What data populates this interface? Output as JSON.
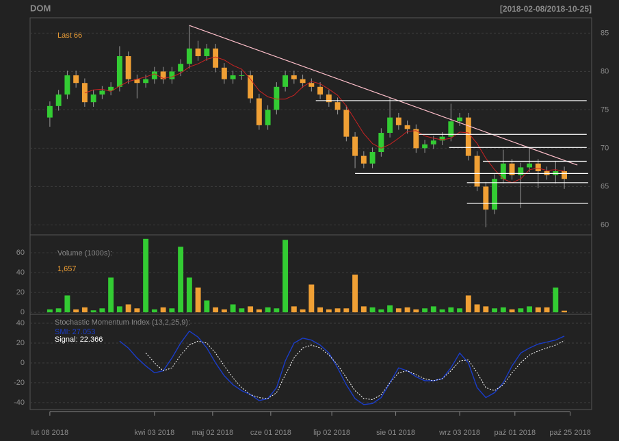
{
  "chart_data": {
    "type": "candlestick",
    "title": "DOM",
    "subtitle": "[2018-02-08/2018-10-25]",
    "last_label": "Last 66",
    "x": [
      0,
      3,
      6,
      9,
      12,
      15,
      18,
      21,
      24,
      27,
      30,
      33,
      36,
      39,
      42,
      45,
      48,
      51,
      54,
      57,
      60,
      63,
      66,
      69,
      72,
      75,
      78,
      81,
      84,
      87,
      90,
      93,
      96,
      99,
      102,
      105,
      108,
      111,
      114,
      117,
      120,
      123,
      126,
      129,
      132,
      135,
      138,
      141,
      144,
      147,
      150,
      153,
      156,
      159,
      162,
      165,
      168,
      171,
      174,
      177
    ],
    "xlim": [
      -6.8,
      186.4
    ],
    "xticks": [
      {
        "value": 0,
        "label": "lut 08 2018"
      },
      {
        "value": 36,
        "label": "kwi 03 2018"
      },
      {
        "value": 56,
        "label": "maj 02 2018"
      },
      {
        "value": 76,
        "label": "cze 01 2018"
      },
      {
        "value": 97,
        "label": "lip 02 2018"
      },
      {
        "value": 119,
        "label": "sie 01 2018"
      },
      {
        "value": 141,
        "label": "wrz 03 2018"
      },
      {
        "value": 160,
        "label": "paź 01 2018"
      },
      {
        "value": 179,
        "label": "paź 25 2018"
      }
    ],
    "open": [
      74,
      75.5,
      77,
      79.5,
      78.5,
      76,
      77,
      77.5,
      78,
      82,
      79,
      78.5,
      79,
      80,
      79,
      80,
      81,
      83,
      82,
      83,
      80.5,
      79,
      79.5,
      79.5,
      76.5,
      73,
      75,
      78,
      79.5,
      79,
      78.5,
      78,
      77,
      76,
      75,
      71.5,
      69,
      68,
      69.5,
      72,
      74,
      73,
      72.5,
      70,
      70.5,
      71,
      71.5,
      73.5,
      74,
      69,
      65,
      62,
      66,
      68,
      66.5,
      67.5,
      68,
      67,
      66.5,
      67
    ],
    "high": [
      76.1,
      77.6,
      80.1,
      80.1,
      79.1,
      77.6,
      78.1,
      78.6,
      83.3,
      82.6,
      79.6,
      79.6,
      80.6,
      80.6,
      80.6,
      81.6,
      86,
      84,
      83.6,
      83.6,
      81.1,
      80.1,
      80.1,
      80.1,
      77.1,
      75.6,
      78.6,
      80.1,
      80.1,
      79.6,
      79.1,
      78.6,
      77.6,
      76.6,
      75.6,
      72.1,
      69.6,
      70.1,
      72.6,
      76.6,
      74.6,
      73.6,
      73.1,
      71.1,
      71.6,
      72.1,
      75.8,
      74.6,
      74.6,
      69.6,
      65.6,
      66.6,
      69.8,
      68.6,
      68.1,
      70,
      68.6,
      67.6,
      68.3,
      67.6
    ],
    "low": [
      72.8,
      74.9,
      76.4,
      77.9,
      75.4,
      75.4,
      76.4,
      76.9,
      77.4,
      78.4,
      76.5,
      77.9,
      78.4,
      78.4,
      78.4,
      79.4,
      80.4,
      81.4,
      81.4,
      79.9,
      78.4,
      78.4,
      78.9,
      75.9,
      72.4,
      72.4,
      74.4,
      77.4,
      78.4,
      77.9,
      77.4,
      76.4,
      75.4,
      74.4,
      70.9,
      67.4,
      67.4,
      67.4,
      68.9,
      71.4,
      72.4,
      71.9,
      69.4,
      69.4,
      69.9,
      70.4,
      70.9,
      72.9,
      68.4,
      64.4,
      59.7,
      61.4,
      65.4,
      65.9,
      62.2,
      66.9,
      64.8,
      65.9,
      65.4,
      64.7
    ],
    "close": [
      75.5,
      77,
      79.5,
      78.5,
      76,
      77,
      77.5,
      78,
      82,
      79,
      78.5,
      79,
      80,
      79,
      80,
      81,
      83,
      82,
      83,
      80.5,
      79,
      79.5,
      79.5,
      76.5,
      73,
      75,
      78,
      79.5,
      79,
      78.5,
      78,
      77,
      76,
      75,
      71.5,
      69,
      68,
      69.5,
      72,
      74,
      73,
      72.5,
      70,
      70.5,
      71,
      71.5,
      73.5,
      74,
      69,
      65,
      62,
      66,
      68,
      66.5,
      67.5,
      68,
      67,
      66.5,
      67,
      66
    ],
    "up_color": "#33cc33",
    "down_color": "#f0a035",
    "ylim": [
      58.7,
      87.0
    ],
    "yticks": [
      60,
      65,
      70,
      75,
      80,
      85
    ],
    "grid": true,
    "sma": {
      "color": "#cc2222",
      "values": [
        null,
        null,
        null,
        null,
        77.2,
        77.6,
        77.7,
        77.4,
        78.1,
        78.7,
        79.0,
        79.3,
        79.7,
        79.1,
        79.3,
        79.8,
        80.6,
        81.0,
        81.6,
        81.9,
        81.5,
        80.8,
        80.3,
        79.0,
        77.5,
        76.7,
        76.4,
        76.4,
        76.9,
        78.0,
        78.7,
        78.4,
        77.7,
        76.9,
        75.5,
        73.7,
        71.9,
        70.6,
        70.0,
        70.5,
        71.3,
        72.2,
        72.3,
        71.6,
        71.3,
        71.1,
        71.3,
        72.1,
        72.0,
        70.6,
        68.7,
        67.2,
        66.0,
        65.5,
        66.0,
        67.2,
        67.4,
        67.1,
        67.2,
        67.0
      ]
    },
    "trendline": {
      "color": "#ffc0cb",
      "x": [
        48,
        181.5
      ],
      "y": [
        86,
        67.8
      ]
    },
    "levels": {
      "color": "#ffffff",
      "items": [
        {
          "value": 76.2,
          "x": [
            91.5,
            184.7
          ]
        },
        {
          "value": 71.8,
          "x": [
            127,
            184.7
          ]
        },
        {
          "value": 70.1,
          "x": [
            137.4,
            184.7
          ]
        },
        {
          "value": 68.3,
          "x": [
            149,
            184.7
          ]
        },
        {
          "value": 66.7,
          "x": [
            105,
            185.2
          ]
        },
        {
          "value": 65.5,
          "x": [
            143.5,
            185.2
          ]
        },
        {
          "value": 62.8,
          "x": [
            143.5,
            185.2
          ]
        }
      ]
    },
    "volume": {
      "label": "Volume (1000s):",
      "last_label": "1,657",
      "values": [
        3,
        4,
        17,
        3,
        5,
        2,
        4,
        35,
        6,
        8,
        4,
        74,
        3,
        5,
        4,
        66,
        35,
        25,
        12,
        5,
        3,
        8,
        4,
        6,
        3,
        5,
        4,
        73,
        6,
        3,
        28,
        5,
        3,
        4,
        4,
        38,
        6,
        5,
        3,
        7,
        4,
        5,
        3,
        4,
        6,
        3,
        5,
        4,
        17,
        8,
        6,
        4,
        5,
        3,
        4,
        6,
        5,
        5,
        25,
        1.657
      ],
      "ylim": [
        -2,
        78
      ],
      "yticks": [
        0,
        20,
        40,
        60
      ]
    },
    "smi": {
      "label": "Stochastic Momentum Index (13,2,25,9):",
      "series": [
        {
          "name": "SMI: 27.053",
          "color": "#1a3cc8",
          "values": [
            null,
            null,
            null,
            null,
            null,
            null,
            null,
            null,
            22,
            15,
            5,
            -3,
            -10,
            -8,
            5,
            20,
            32,
            26,
            15,
            0,
            -13,
            -22,
            -28,
            -32,
            -38,
            -36,
            -25,
            2,
            20,
            25,
            23,
            18,
            10,
            -5,
            -22,
            -36,
            -42,
            -41,
            -35,
            -20,
            -5,
            -8,
            -14,
            -18,
            -18,
            -16,
            -5,
            10,
            0,
            -25,
            -35,
            -30,
            -20,
            -3,
            10,
            15,
            19,
            21,
            23,
            27.053
          ]
        },
        {
          "name": "Signal: 22.366",
          "color": "#ffffff",
          "dashed": true,
          "values": [
            null,
            null,
            null,
            null,
            null,
            null,
            null,
            null,
            null,
            null,
            null,
            10,
            0,
            -8,
            -5,
            8,
            18,
            22,
            20,
            10,
            -3,
            -15,
            -25,
            -32,
            -35,
            -36,
            -30,
            -12,
            5,
            15,
            18,
            15,
            8,
            -2,
            -15,
            -28,
            -36,
            -37,
            -32,
            -20,
            -10,
            -8,
            -12,
            -16,
            -18,
            -16,
            -8,
            2,
            3,
            -10,
            -25,
            -28,
            -22,
            -10,
            0,
            8,
            12,
            15,
            18,
            22.366
          ]
        }
      ],
      "ylim": [
        -47,
        49
      ],
      "yticks": [
        -40,
        -20,
        0,
        20,
        40
      ]
    }
  }
}
